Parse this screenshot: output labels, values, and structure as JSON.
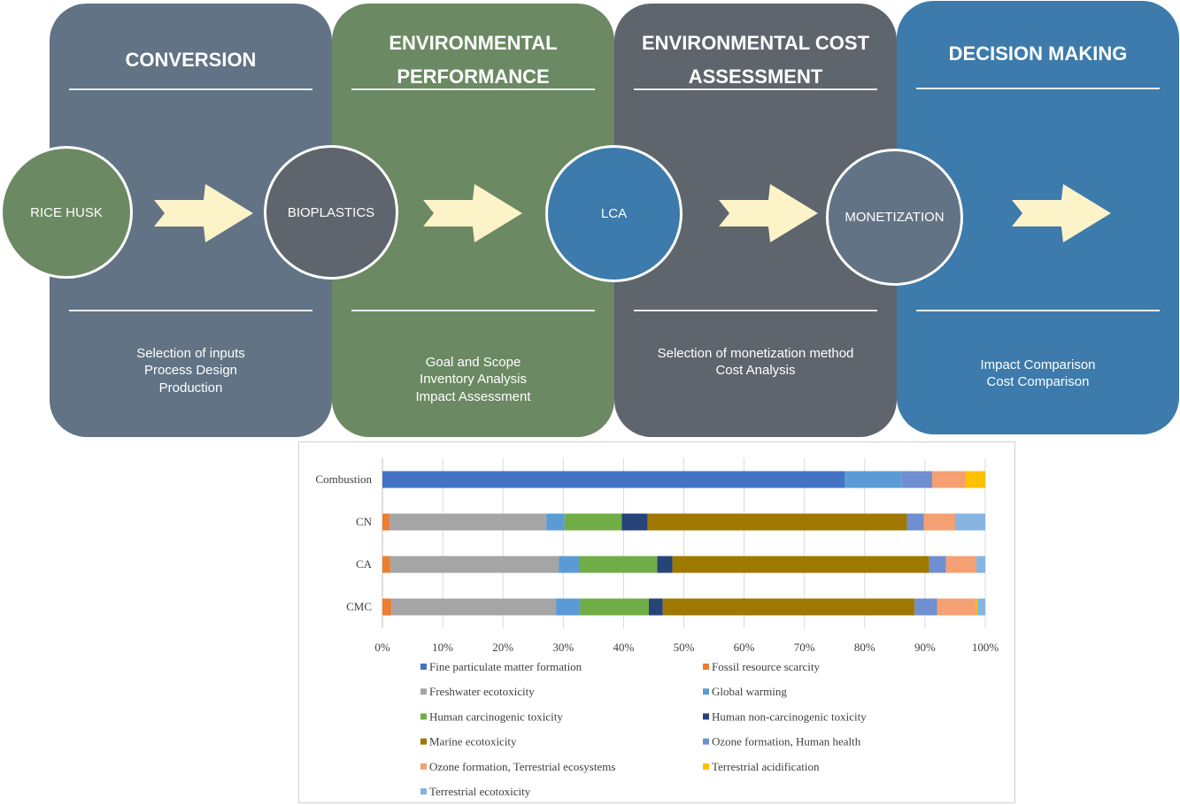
{
  "panels": [
    {
      "title": "CONVERSION",
      "color": "#617385",
      "items": [
        "Selection of inputs",
        "Process Design",
        "Production"
      ]
    },
    {
      "title": "ENVIRONMENTAL\nPERFORMANCE",
      "color": "#6b8962",
      "items": [
        "Goal and Scope",
        "Inventory Analysis",
        "Impact Assessment"
      ]
    },
    {
      "title": "ENVIRONMENTAL COST\nASSESSMENT",
      "color": "#5e656d",
      "items": [
        "Selection of monetization method",
        "Cost Analysis"
      ]
    },
    {
      "title": "DECISION MAKING",
      "color": "#3c7bab",
      "items": [
        "Impact Comparison",
        "Cost Comparison"
      ]
    }
  ],
  "nodes": [
    {
      "label": "RICE HUSK",
      "color": "#6b8962"
    },
    {
      "label": "BIOPLASTICS",
      "color": "#5e656d"
    },
    {
      "label": "LCA",
      "color": "#3c7bab"
    },
    {
      "label": "MONETIZATION",
      "color": "#617385"
    }
  ],
  "arrow_color": "#fdf3c9",
  "chart_data": {
    "type": "bar",
    "orientation": "horizontal",
    "stacked": "percent",
    "categories": [
      "Combustion",
      "CN",
      "CA",
      "CMC"
    ],
    "xlim": [
      0,
      100
    ],
    "xticks": [
      "0%",
      "10%",
      "20%",
      "30%",
      "40%",
      "50%",
      "60%",
      "70%",
      "80%",
      "90%",
      "100%"
    ],
    "grid": true,
    "legend_position": "bottom",
    "series": [
      {
        "name": "Fine particulate matter formation",
        "color": "#4472c4",
        "values": [
          76.5,
          0,
          0,
          0
        ]
      },
      {
        "name": "Fossil resource scarcity",
        "color": "#ed7d31",
        "values": [
          0,
          1.2,
          1.3,
          1.5
        ]
      },
      {
        "name": "Freshwater ecotoxicity",
        "color": "#a5a5a5",
        "values": [
          0,
          26.0,
          28.0,
          27.3
        ]
      },
      {
        "name": "Global warming",
        "color": "#5b9bd5",
        "values": [
          9.5,
          3.0,
          3.3,
          4.0
        ]
      },
      {
        "name": "Human carcinogenic toxicity",
        "color": "#70ad47",
        "values": [
          0,
          9.5,
          13.0,
          11.4
        ]
      },
      {
        "name": "Human non-carcinogenic toxicity",
        "color": "#264478",
        "values": [
          0,
          4.3,
          2.5,
          2.3
        ]
      },
      {
        "name": "Marine ecotoxicity",
        "color": "#9e7800",
        "values": [
          0,
          43.0,
          42.6,
          41.8
        ]
      },
      {
        "name": "Ozone formation, Human health",
        "color": "#6f8fd0",
        "values": [
          5.0,
          2.8,
          2.8,
          3.7
        ]
      },
      {
        "name": "Ozone formation, Terrestrial ecosystems",
        "color": "#f4a072",
        "values": [
          5.5,
          5.2,
          5.0,
          6.5
        ]
      },
      {
        "name": "Terrestrial acidification",
        "color": "#ffc000",
        "values": [
          3.3,
          0,
          0,
          0.2
        ]
      },
      {
        "name": "Terrestrial ecotoxicity",
        "color": "#85b5e0",
        "values": [
          0,
          5.0,
          1.5,
          1.3
        ]
      }
    ]
  }
}
